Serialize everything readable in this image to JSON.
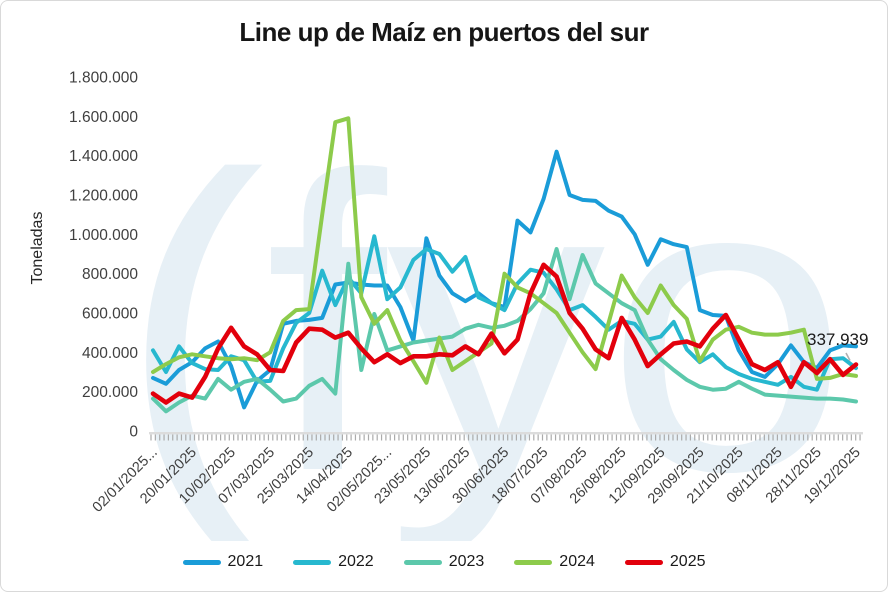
{
  "title": "Line up de Maíz en puertos del sur",
  "y_axis_title": "Toneladas",
  "annotation": {
    "text": "337.939",
    "series": "2025",
    "point": "last"
  },
  "watermark": {
    "text": "(fyo",
    "color": "#e7f0f6"
  },
  "axis_colors": {
    "tick_label": "#3f3f3f",
    "axis_band": "#dcdcdc",
    "tick_mark": "#ababab",
    "leader_line": "#b0b0b0"
  },
  "chart_data": {
    "type": "line",
    "title": "Line up de Maíz en puertos del sur",
    "xlabel": "",
    "ylabel": "Toneladas",
    "ylim": [
      0,
      1800000
    ],
    "y_tick_step": 200000,
    "y_tick_labels": [
      "0",
      "200.000",
      "400.000",
      "600.000",
      "800.000",
      "1.000.000",
      "1.200.000",
      "1.400.000",
      "1.600.000",
      "1.800.000"
    ],
    "grid": "off",
    "legend_position": "bottom",
    "n_points": 55,
    "label_every": 3,
    "x_tick_labels": [
      "02/01/2025...",
      "20/01/2025",
      "10/02/2025",
      "07/03/2025",
      "25/03/2025",
      "14/04/2025",
      "02/05/2025...",
      "23/05/2025",
      "13/06/2025",
      "30/06/2025",
      "18/07/2025",
      "07/08/2025",
      "26/08/2025",
      "12/09/2025",
      "29/09/2025",
      "21/10/2025",
      "08/11/2025",
      "28/11/2025",
      "19/12/2025"
    ],
    "series": [
      {
        "name": "2021",
        "color": "#1a9cd8",
        "values": [
          270000,
          240000,
          310000,
          350000,
          420000,
          455000,
          330000,
          120000,
          255000,
          310000,
          545000,
          560000,
          565000,
          575000,
          745000,
          755000,
          745000,
          740000,
          740000,
          630000,
          460000,
          980000,
          790000,
          700000,
          660000,
          700000,
          650000,
          630000,
          1070000,
          1010000,
          1180000,
          1420000,
          1200000,
          1175000,
          1170000,
          1120000,
          1090000,
          1000000,
          845000,
          975000,
          950000,
          935000,
          615000,
          590000,
          585000,
          410000,
          300000,
          275000,
          340000,
          435000,
          350000,
          320000,
          410000,
          435000,
          430000
        ]
      },
      {
        "name": "2022",
        "color": "#27b8cf",
        "values": [
          410000,
          300000,
          430000,
          345000,
          315000,
          310000,
          380000,
          360000,
          250000,
          255000,
          420000,
          550000,
          600000,
          815000,
          640000,
          780000,
          700000,
          990000,
          670000,
          730000,
          870000,
          925000,
          900000,
          810000,
          885000,
          680000,
          650000,
          615000,
          750000,
          820000,
          805000,
          720000,
          615000,
          640000,
          580000,
          515000,
          560000,
          545000,
          465000,
          480000,
          555000,
          415000,
          350000,
          390000,
          325000,
          290000,
          265000,
          250000,
          235000,
          275000,
          225000,
          210000,
          365000,
          370000,
          320000
        ]
      },
      {
        "name": "2023",
        "color": "#5cc8ab",
        "values": [
          165000,
          100000,
          145000,
          180000,
          165000,
          265000,
          210000,
          250000,
          265000,
          210000,
          150000,
          165000,
          230000,
          265000,
          190000,
          850000,
          310000,
          595000,
          410000,
          430000,
          450000,
          460000,
          470000,
          480000,
          520000,
          540000,
          525000,
          535000,
          560000,
          620000,
          700000,
          925000,
          670000,
          895000,
          750000,
          700000,
          650000,
          615000,
          465000,
          365000,
          310000,
          260000,
          225000,
          210000,
          215000,
          250000,
          215000,
          185000,
          180000,
          175000,
          170000,
          165000,
          165000,
          160000,
          150000
        ]
      },
      {
        "name": "2024",
        "color": "#8dcb4b",
        "values": [
          300000,
          340000,
          375000,
          390000,
          380000,
          370000,
          365000,
          370000,
          360000,
          400000,
          560000,
          615000,
          620000,
          1100000,
          1570000,
          1590000,
          680000,
          545000,
          615000,
          460000,
          355000,
          245000,
          475000,
          310000,
          355000,
          400000,
          445000,
          800000,
          730000,
          700000,
          650000,
          600000,
          500000,
          400000,
          315000,
          550000,
          790000,
          680000,
          600000,
          740000,
          640000,
          570000,
          355000,
          465000,
          515000,
          530000,
          500000,
          490000,
          490000,
          500000,
          515000,
          265000,
          270000,
          290000,
          280000
        ]
      },
      {
        "name": "2025",
        "color": "#e2000c",
        "values": [
          190000,
          145000,
          190000,
          170000,
          275000,
          420000,
          525000,
          430000,
          390000,
          310000,
          305000,
          450000,
          520000,
          515000,
          475000,
          500000,
          420000,
          350000,
          390000,
          345000,
          380000,
          380000,
          390000,
          385000,
          430000,
          390000,
          495000,
          395000,
          465000,
          700000,
          845000,
          785000,
          600000,
          520000,
          415000,
          370000,
          575000,
          465000,
          330000,
          390000,
          445000,
          455000,
          430000,
          520000,
          590000,
          465000,
          340000,
          310000,
          350000,
          225000,
          350000,
          295000,
          365000,
          285000,
          337939
        ]
      }
    ],
    "annotation": {
      "text": "337.939",
      "series": "2025",
      "point": "last"
    }
  }
}
